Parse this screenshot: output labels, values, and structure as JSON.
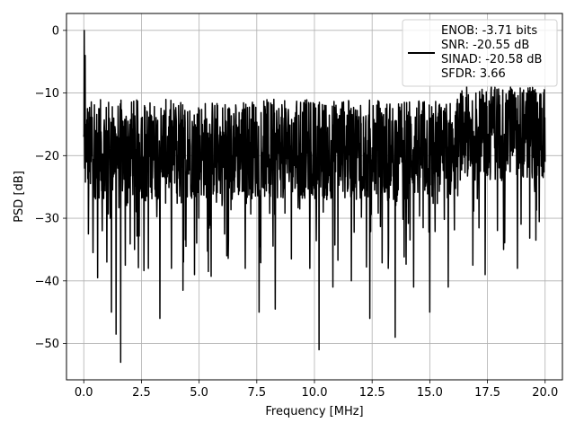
{
  "chart_data": {
    "type": "line",
    "xlabel": "Frequency [MHz]",
    "ylabel": "PSD [dB]",
    "xlim": [
      -0.75,
      20.75
    ],
    "ylim": [
      -55.8,
      2.7
    ],
    "x_ticks": [
      0.0,
      2.5,
      5.0,
      7.5,
      10.0,
      12.5,
      15.0,
      17.5,
      20.0
    ],
    "x_tick_labels": [
      "0.0",
      "2.5",
      "5.0",
      "7.5",
      "10.0",
      "12.5",
      "15.0",
      "17.5",
      "20.0"
    ],
    "y_ticks": [
      0,
      -10,
      -20,
      -30,
      -40,
      -50
    ],
    "y_tick_labels": [
      "0",
      "−10",
      "−20",
      "−30",
      "−40",
      "−50"
    ],
    "grid": true,
    "legend_position": "top-right",
    "line_color": "#000000",
    "legend": {
      "lines": [
        "ENOB: -3.71 bits",
        "SNR: -20.55 dB",
        "SINAD: -20.58 dB",
        "SFDR: 3.66"
      ]
    },
    "series": [
      {
        "x_start": 0.0,
        "x_step": 0.02,
        "values_note": "approximate noise-floor trace; peaks read from gridlines",
        "points": [
          [
            0.0,
            -17.0
          ],
          [
            0.02,
            0.0
          ],
          [
            0.04,
            -22.0
          ],
          [
            0.06,
            -4.0
          ],
          [
            0.08,
            -15.0
          ],
          [
            0.12,
            -21.0
          ],
          [
            0.16,
            -12.5
          ],
          [
            0.2,
            -32.5
          ],
          [
            0.3,
            -14.0
          ],
          [
            0.4,
            -35.5
          ],
          [
            0.5,
            -16.0
          ],
          [
            0.6,
            -39.5
          ],
          [
            0.7,
            -12.5
          ],
          [
            0.8,
            -32.0
          ],
          [
            0.9,
            -16.0
          ],
          [
            1.0,
            -37.0
          ],
          [
            1.1,
            -14.0
          ],
          [
            1.2,
            -45.0
          ],
          [
            1.3,
            -14.0
          ],
          [
            1.4,
            -48.5
          ],
          [
            1.5,
            -16.5
          ],
          [
            1.6,
            -53.0
          ],
          [
            1.7,
            -14.5
          ],
          [
            1.8,
            -37.5
          ],
          [
            2.0,
            -15.0
          ],
          [
            2.2,
            -35.0
          ],
          [
            2.5,
            -14.0
          ],
          [
            2.8,
            -38.0
          ],
          [
            3.0,
            -14.5
          ],
          [
            3.3,
            -46.0
          ],
          [
            3.5,
            -13.5
          ],
          [
            3.8,
            -38.0
          ],
          [
            4.0,
            -13.5
          ],
          [
            4.3,
            -41.5
          ],
          [
            4.5,
            -13.0
          ],
          [
            4.8,
            -39.0
          ],
          [
            5.0,
            -13.5
          ],
          [
            5.4,
            -38.5
          ],
          [
            5.8,
            -12.0
          ],
          [
            6.2,
            -36.0
          ],
          [
            6.6,
            -12.5
          ],
          [
            7.0,
            -38.0
          ],
          [
            7.3,
            -12.0
          ],
          [
            7.6,
            -45.0
          ],
          [
            8.0,
            -11.5
          ],
          [
            8.3,
            -44.5
          ],
          [
            8.6,
            -12.5
          ],
          [
            9.0,
            -36.5
          ],
          [
            9.4,
            -11.5
          ],
          [
            9.8,
            -38.0
          ],
          [
            10.2,
            -51.0
          ],
          [
            10.5,
            -12.0
          ],
          [
            10.8,
            -41.0
          ],
          [
            11.2,
            -11.5
          ],
          [
            11.6,
            -40.0
          ],
          [
            12.0,
            -12.0
          ],
          [
            12.4,
            -46.0
          ],
          [
            12.8,
            -11.5
          ],
          [
            13.2,
            -38.0
          ],
          [
            13.5,
            -49.0
          ],
          [
            13.9,
            -11.5
          ],
          [
            14.3,
            -41.0
          ],
          [
            14.7,
            -11.5
          ],
          [
            15.0,
            -45.0
          ],
          [
            15.4,
            -12.0
          ],
          [
            15.8,
            -41.0
          ],
          [
            16.2,
            -11.0
          ],
          [
            16.6,
            -9.0
          ],
          [
            17.0,
            -10.0
          ],
          [
            17.4,
            -39.0
          ],
          [
            17.8,
            -9.5
          ],
          [
            18.2,
            -35.0
          ],
          [
            18.5,
            -9.0
          ],
          [
            18.8,
            -38.0
          ],
          [
            19.2,
            -10.0
          ],
          [
            19.6,
            -33.5
          ],
          [
            20.0,
            -21.0
          ]
        ]
      }
    ]
  }
}
